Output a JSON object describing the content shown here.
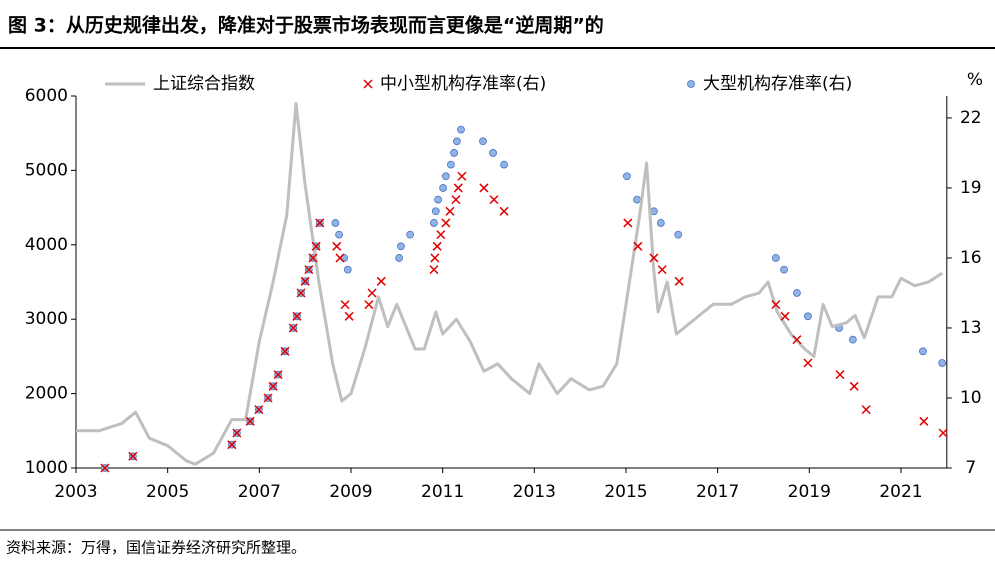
{
  "chart_data": {
    "type": "line-scatter",
    "title": "图 3：从历史规律出发，降准对于股票市场表现而言更像是“逆周期”的",
    "source": "资料来源：万得，国信证券经济研究所整理。",
    "y2label": "%",
    "xlim": [
      2003,
      2022
    ],
    "xticks": [
      2003,
      2005,
      2007,
      2009,
      2011,
      2013,
      2015,
      2017,
      2019,
      2021
    ],
    "ylim": [
      1000,
      6000
    ],
    "yticks": [
      1000,
      2000,
      3000,
      4000,
      5000,
      6000
    ],
    "y2lim": [
      7,
      22.94
    ],
    "y2ticks": [
      7,
      10,
      13,
      16,
      19,
      22
    ],
    "series": [
      {
        "name": "上证综合指数",
        "kind": "line",
        "color": "#bfbfbf",
        "x": [
          2003.0,
          2003.5,
          2004.0,
          2004.3,
          2004.6,
          2005.0,
          2005.4,
          2005.6,
          2006.0,
          2006.4,
          2006.7,
          2007.0,
          2007.3,
          2007.6,
          2007.8,
          2008.0,
          2008.3,
          2008.6,
          2008.8,
          2009.0,
          2009.3,
          2009.6,
          2009.8,
          2010.0,
          2010.4,
          2010.6,
          2010.85,
          2011.0,
          2011.3,
          2011.6,
          2011.9,
          2012.2,
          2012.5,
          2012.9,
          2013.1,
          2013.5,
          2013.8,
          2014.2,
          2014.5,
          2014.8,
          2015.0,
          2015.3,
          2015.45,
          2015.6,
          2015.7,
          2015.9,
          2016.1,
          2016.5,
          2016.9,
          2017.3,
          2017.6,
          2017.9,
          2018.1,
          2018.3,
          2018.6,
          2018.9,
          2019.1,
          2019.3,
          2019.5,
          2019.8,
          2020.0,
          2020.2,
          2020.5,
          2020.8,
          2021.0,
          2021.3,
          2021.6,
          2021.9
        ],
        "values": [
          1500,
          1500,
          1600,
          1750,
          1400,
          1300,
          1100,
          1050,
          1200,
          1650,
          1650,
          2700,
          3500,
          4400,
          5900,
          4800,
          3500,
          2400,
          1900,
          2000,
          2600,
          3300,
          2900,
          3200,
          2600,
          2600,
          3100,
          2800,
          3000,
          2700,
          2300,
          2400,
          2200,
          2000,
          2400,
          2000,
          2200,
          2050,
          2100,
          2400,
          3200,
          4400,
          5100,
          3700,
          3100,
          3500,
          2800,
          3000,
          3200,
          3200,
          3300,
          3350,
          3500,
          3100,
          2800,
          2600,
          2500,
          3200,
          2900,
          2950,
          3050,
          2750,
          3300,
          3300,
          3550,
          3450,
          3500,
          3620
        ]
      },
      {
        "name": "中小型机构存准率(右)",
        "kind": "cross",
        "color": "#e00000",
        "axis": "y2",
        "x": [
          2003.63,
          2004.24,
          2006.4,
          2006.51,
          2006.8,
          2006.99,
          2007.19,
          2007.3,
          2007.41,
          2007.56,
          2007.74,
          2007.82,
          2007.91,
          2008.0,
          2008.08,
          2008.17,
          2008.24,
          2008.32,
          2008.69,
          2008.76,
          2008.87,
          2008.96,
          2009.39,
          2009.46,
          2009.66,
          2010.81,
          2010.83,
          2010.88,
          2010.96,
          2011.07,
          2011.16,
          2011.29,
          2011.34,
          2011.42,
          2011.9,
          2012.12,
          2012.34,
          2015.04,
          2015.26,
          2015.61,
          2015.79,
          2016.16,
          2018.27,
          2018.47,
          2018.73,
          2018.97,
          2019.67,
          2019.98,
          2020.24,
          2021.5,
          2021.92
        ],
        "values": [
          7,
          7.5,
          8,
          8.5,
          9,
          9.5,
          10,
          10.5,
          11,
          12,
          13,
          13.5,
          14.5,
          15,
          15.5,
          16,
          16.5,
          17.5,
          16.5,
          16,
          14,
          13.5,
          14,
          14.5,
          15,
          15.5,
          16,
          16.5,
          17,
          17.5,
          18,
          18.5,
          19,
          19.5,
          19,
          18.5,
          18,
          17.5,
          16.5,
          16,
          15.5,
          15,
          14,
          13.5,
          12.5,
          11.5,
          11,
          10.5,
          9.5,
          9,
          8.5
        ]
      },
      {
        "name": "大型机构存准率(右)",
        "kind": "dot",
        "color": "#8fb4e3",
        "axis": "y2",
        "x": [
          2003.63,
          2004.24,
          2006.4,
          2006.51,
          2006.8,
          2006.99,
          2007.19,
          2007.3,
          2007.41,
          2007.56,
          2007.74,
          2007.82,
          2007.91,
          2008.0,
          2008.08,
          2008.17,
          2008.24,
          2008.32,
          2008.66,
          2008.74,
          2008.85,
          2008.93,
          2010.05,
          2010.09,
          2010.29,
          2010.81,
          2010.85,
          2010.9,
          2011.01,
          2011.07,
          2011.18,
          2011.25,
          2011.31,
          2011.4,
          2011.88,
          2012.1,
          2012.34,
          2015.02,
          2015.24,
          2015.61,
          2015.76,
          2016.14,
          2018.27,
          2018.45,
          2018.73,
          2018.97,
          2019.65,
          2019.95,
          2021.48,
          2021.9
        ],
        "values": [
          7,
          7.5,
          8,
          8.5,
          9,
          9.5,
          10,
          10.5,
          11,
          12,
          13,
          13.5,
          14.5,
          15,
          15.5,
          16,
          16.5,
          17.5,
          17.5,
          17,
          16,
          15.5,
          16,
          16.5,
          17,
          17.5,
          18,
          18.5,
          19,
          19.5,
          20,
          20.5,
          21,
          21.5,
          21,
          20.5,
          20,
          19.5,
          18.5,
          18,
          17.5,
          17,
          16,
          15.5,
          14.5,
          13.5,
          13,
          12.5,
          12,
          11.5
        ]
      }
    ]
  }
}
